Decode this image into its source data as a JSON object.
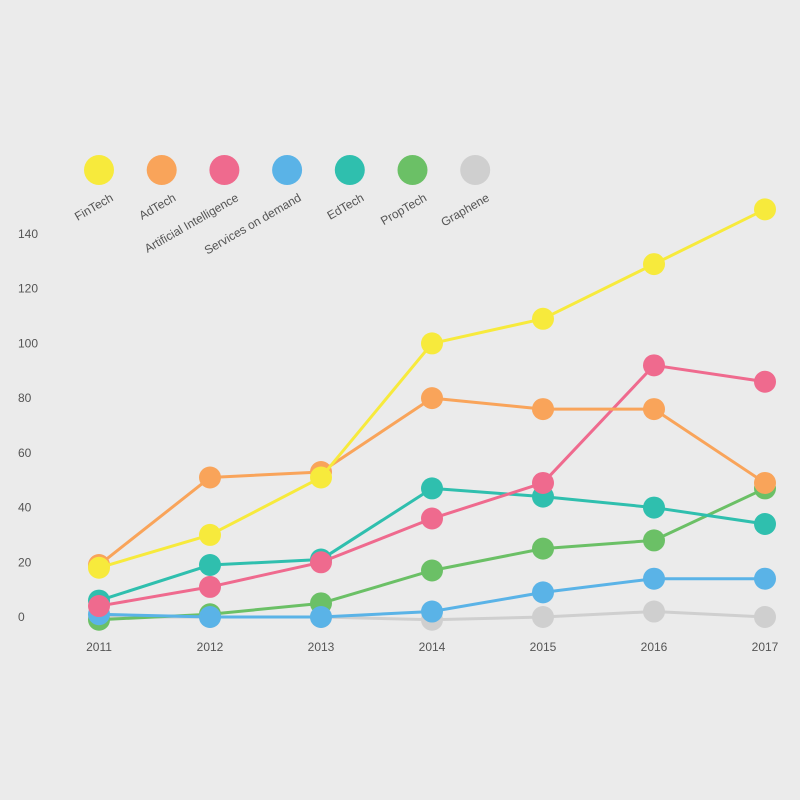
{
  "chart_data": {
    "type": "line",
    "title": "",
    "xlabel": "",
    "ylabel": "",
    "x": [
      "2011",
      "2012",
      "2013",
      "2014",
      "2015",
      "2016",
      "2017"
    ],
    "y_ticks": [
      0,
      20,
      40,
      60,
      80,
      100,
      120,
      140
    ],
    "ylim": [
      -5,
      155
    ],
    "grid": false,
    "legend_position": "top-left",
    "series": [
      {
        "name": "FinTech",
        "color": "#f7ea3c",
        "values": [
          18,
          30,
          51,
          100,
          109,
          129,
          149
        ]
      },
      {
        "name": "AdTech",
        "color": "#f9a45a",
        "values": [
          19,
          51,
          53,
          80,
          76,
          76,
          49
        ]
      },
      {
        "name": "Artificial Intelligence",
        "color": "#ef6a8e",
        "values": [
          4,
          11,
          20,
          36,
          49,
          92,
          86
        ]
      },
      {
        "name": "Services on demand",
        "color": "#5ab3e7",
        "values": [
          1,
          0,
          0,
          2,
          9,
          14,
          14
        ]
      },
      {
        "name": "EdTech",
        "color": "#2fbfae",
        "values": [
          6,
          19,
          21,
          47,
          44,
          40,
          34
        ]
      },
      {
        "name": "PropTech",
        "color": "#6bc066",
        "values": [
          -1,
          1,
          5,
          17,
          25,
          28,
          47
        ]
      },
      {
        "name": "Graphene",
        "color": "#cfcfcf",
        "values": [
          0,
          0,
          0,
          -1,
          0,
          2,
          0
        ]
      }
    ]
  }
}
